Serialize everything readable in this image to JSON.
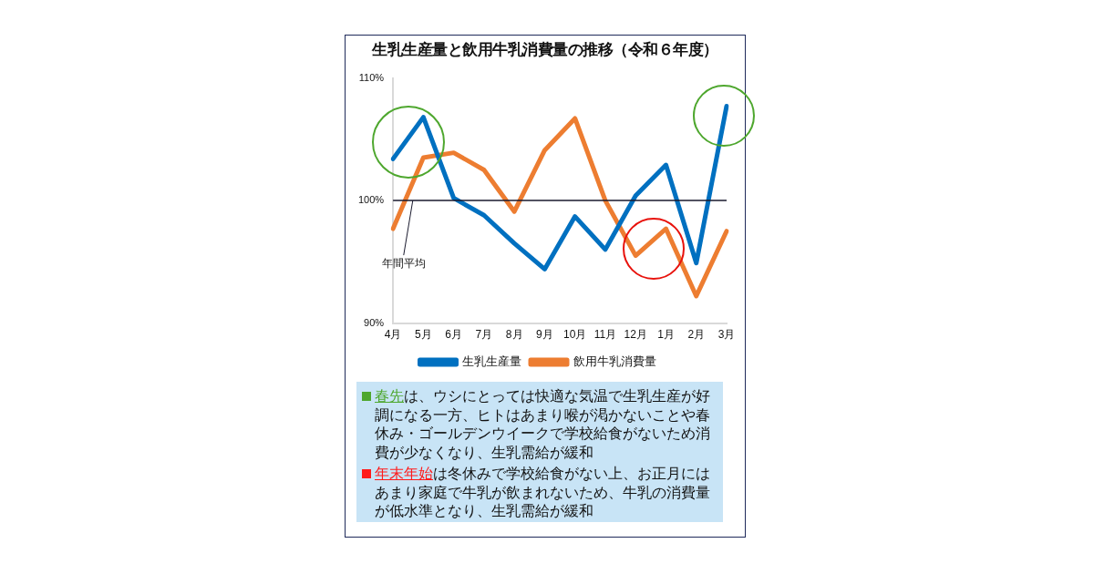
{
  "chart_data": {
    "type": "line",
    "title": "生乳生産量と飲用牛乳消費量の推移（令和６年度）",
    "categories": [
      "4月",
      "5月",
      "6月",
      "7月",
      "8月",
      "9月",
      "10月",
      "11月",
      "12月",
      "1月",
      "2月",
      "3月"
    ],
    "series": [
      {
        "name": "生乳生産量",
        "color": "#0070c0",
        "values": [
          103.4,
          106.8,
          100.2,
          98.8,
          96.5,
          94.4,
          98.7,
          96.0,
          100.4,
          102.9,
          94.9,
          107.7
        ]
      },
      {
        "name": "飲用牛乳消費量",
        "color": "#ed7d31",
        "values": [
          97.7,
          103.5,
          103.9,
          102.5,
          99.1,
          104.1,
          106.7,
          100.0,
          95.5,
          97.7,
          92.2,
          97.5
        ]
      }
    ],
    "ylim": [
      90,
      110
    ],
    "yticks": [
      {
        "value": 90,
        "label": "90%"
      },
      {
        "value": 100,
        "label": "100%"
      },
      {
        "value": 110,
        "label": "110%"
      }
    ],
    "ref_lines": [
      {
        "axis": "y",
        "value": 100,
        "label": "年間平均",
        "color": "#1a1a2e"
      }
    ],
    "annotations": [
      "春先",
      "は、ウシにとっては快適な気温で生乳生産が好調になる一方、ヒトはあまり喉が渇かないことや春休み・ゴールデンウイークで学校給食がないため消費が少なくなり、生乳需給が緩和",
      "年末年始",
      "は冬休みで学校給食がない上、お正月にはあまり家庭で牛乳が飲まれないため、牛乳の消費量が低水準となり、生乳需給が緩和"
    ],
    "grid": false,
    "legend": "bottom",
    "marker": "none",
    "line_style": "solid"
  }
}
